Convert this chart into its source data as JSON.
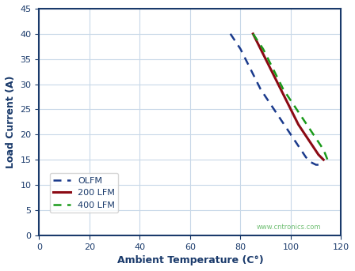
{
  "title": "",
  "xlabel": "Ambient Temperature (C°)",
  "ylabel": "Load Current (A)",
  "xlim": [
    0,
    120
  ],
  "ylim": [
    0,
    45
  ],
  "xticks": [
    0,
    20,
    40,
    60,
    80,
    100,
    120
  ],
  "yticks": [
    0,
    5,
    10,
    15,
    20,
    25,
    30,
    35,
    40,
    45
  ],
  "bg_color": "#ffffff",
  "grid_color": "#c8d8e8",
  "border_color": "#1a3a6b",
  "olfm_x": [
    76,
    78,
    80,
    82,
    84,
    86,
    88,
    90,
    92,
    94,
    96,
    98,
    100,
    102,
    104,
    106,
    108,
    110,
    112
  ],
  "olfm_y": [
    40,
    38.5,
    37,
    35,
    33,
    31,
    29,
    27.5,
    26,
    24.5,
    23,
    21.5,
    20,
    18.5,
    17,
    15.5,
    14.5,
    14,
    14
  ],
  "olfm_color": "#1a3a8c",
  "lfm200_x": [
    85,
    87,
    89,
    91,
    93,
    95,
    97,
    99,
    101,
    103,
    105,
    107,
    109,
    111,
    113
  ],
  "lfm200_y": [
    40,
    38,
    36,
    34,
    32,
    30,
    28,
    26,
    24,
    22,
    20.5,
    19,
    17.5,
    16,
    15
  ],
  "lfm200_color": "#8b0a14",
  "lfm400_x": [
    85,
    87,
    89,
    91,
    93,
    95,
    97,
    99,
    101,
    103,
    105,
    107,
    109,
    111,
    113,
    115
  ],
  "lfm400_y": [
    40,
    38.5,
    37,
    35,
    33,
    31,
    29,
    27.5,
    26,
    24.5,
    23,
    21.5,
    20,
    18.5,
    17,
    14.5
  ],
  "lfm400_color": "#1a9a1a",
  "legend_labels": [
    "OLFM",
    "200 LFM",
    "400 LFM"
  ],
  "legend_colors": [
    "#1a3a8c",
    "#8b0a14",
    "#1a9a1a"
  ],
  "legend_styles": [
    "dashed",
    "solid",
    "dashed"
  ],
  "axis_label_color": "#1a3a6b",
  "tick_label_color": "#1a3a6b",
  "watermark": "www.cntronics.com"
}
